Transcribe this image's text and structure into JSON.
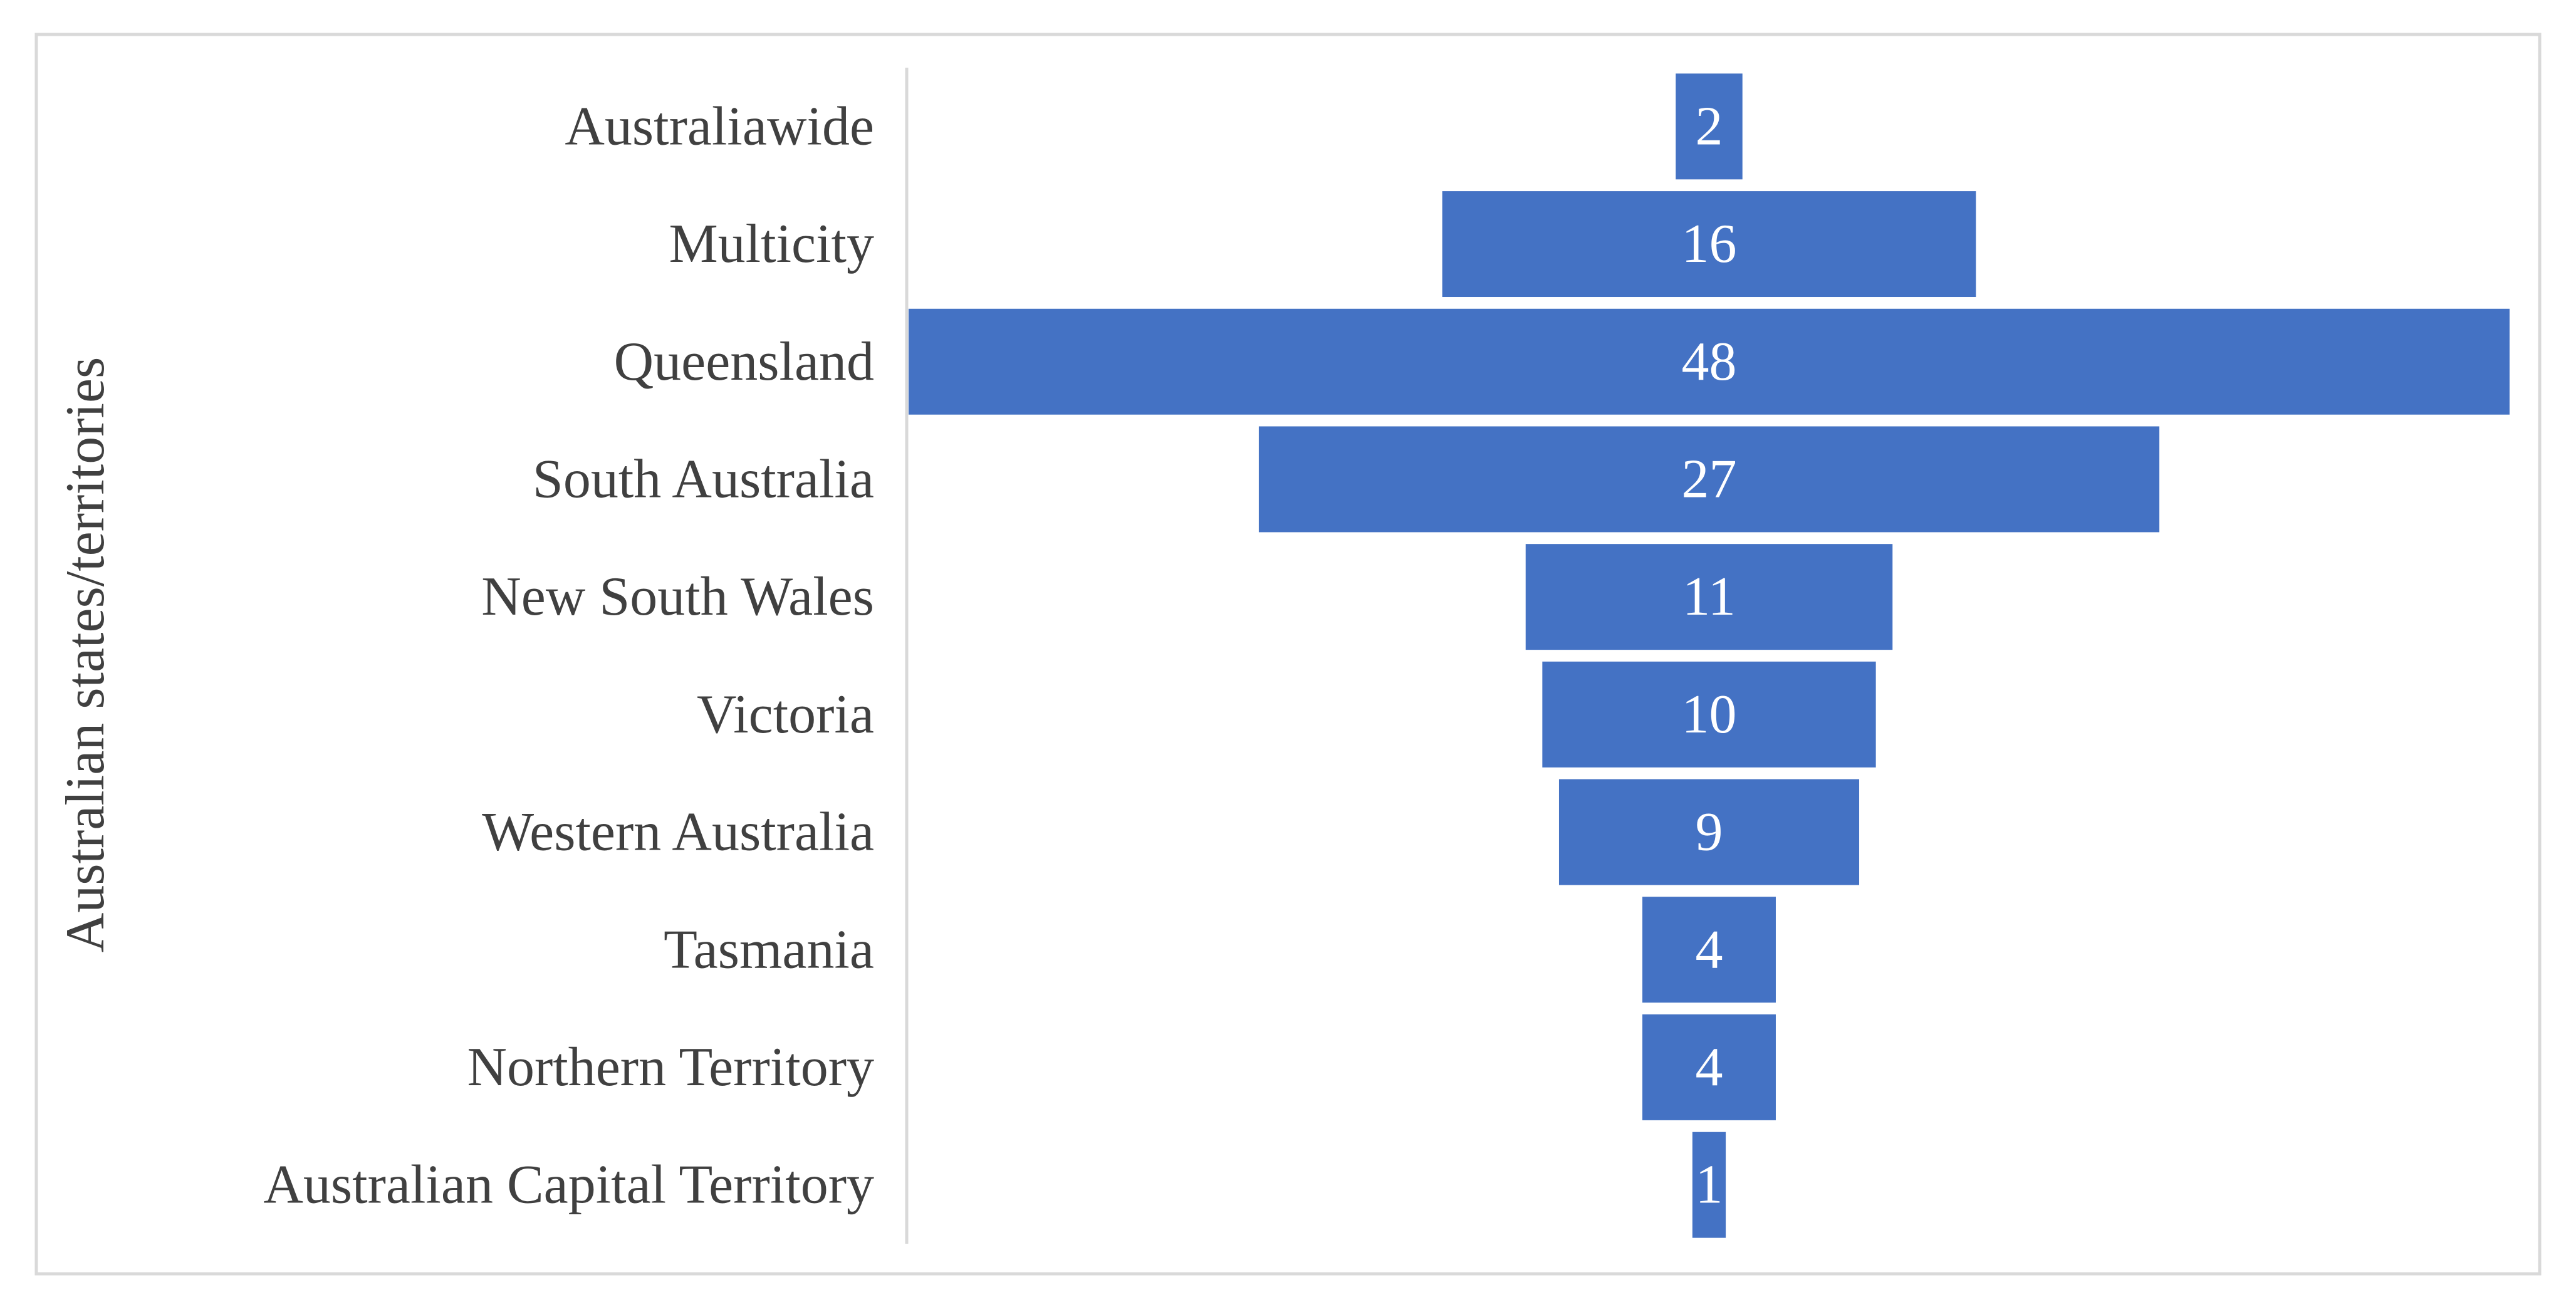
{
  "chart_data": {
    "type": "bar",
    "orientation": "horizontal-funnel",
    "ylabel": "Australian states/territories",
    "categories": [
      "Australiawide",
      "Multicity",
      "Queensland",
      "South Australia",
      "New South Wales",
      "Victoria",
      "Western Australia",
      "Tasmania",
      "Northern Territory",
      "Australian Capital Territory"
    ],
    "values": [
      2,
      16,
      48,
      27,
      11,
      10,
      9,
      4,
      4,
      1
    ],
    "data_labels": [
      "2",
      "16",
      "48",
      "27",
      "11",
      "10",
      "9",
      "4",
      "4",
      "1"
    ],
    "bars_centered": true,
    "grid": false,
    "legend": "none"
  },
  "colors": {
    "bar": "#4472C4",
    "bar_label": "#FFFFFF",
    "category_text": "#404040",
    "axis_title": "#404040",
    "axis_line": "#D9D9D9",
    "frame_border": "#D9D9D9"
  }
}
